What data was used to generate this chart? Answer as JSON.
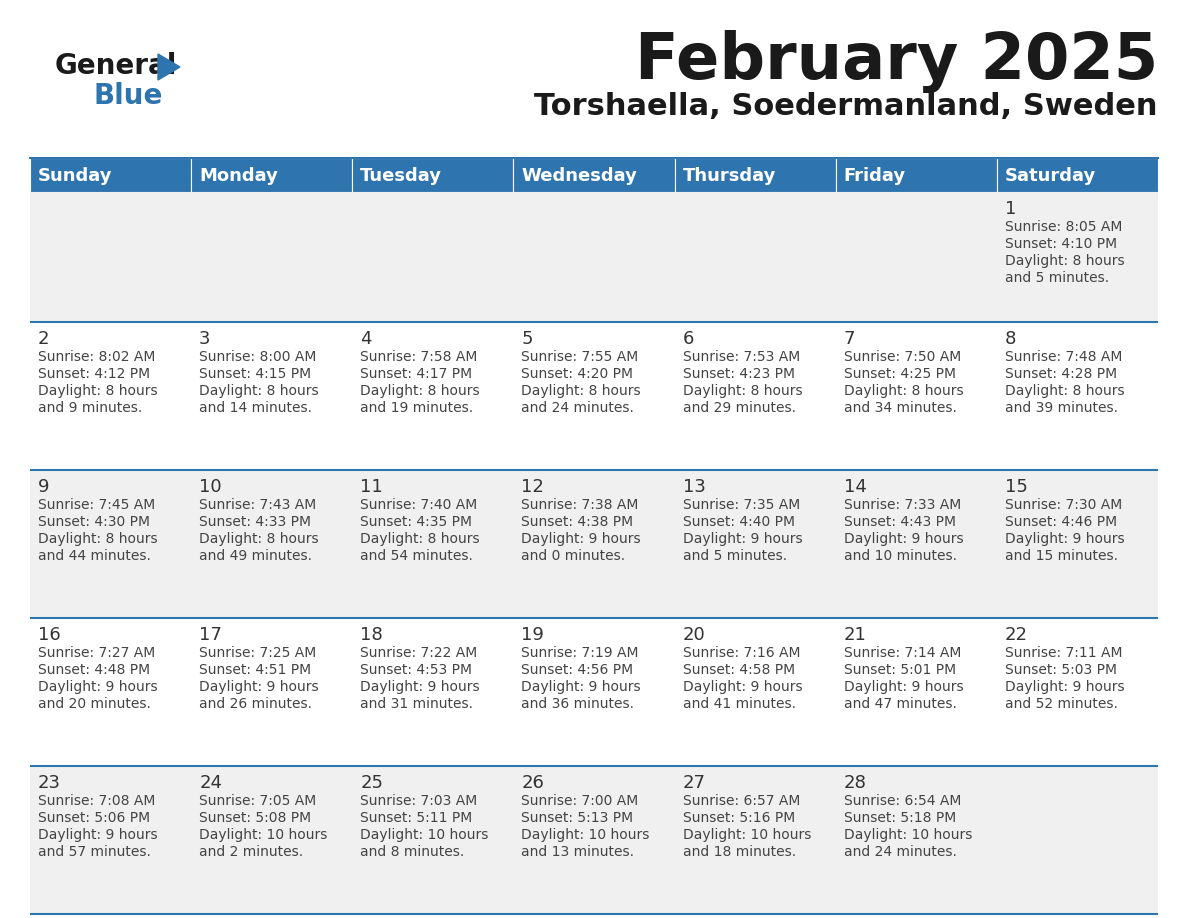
{
  "title": "February 2025",
  "subtitle": "Torshaella, Soedermanland, Sweden",
  "header_bg": "#2E74AE",
  "header_text_color": "#FFFFFF",
  "row_bg_odd": "#F0F0F0",
  "row_bg_even": "#FFFFFF",
  "separator_color": "#2E74AE",
  "text_color": "#333333",
  "days_of_week": [
    "Sunday",
    "Monday",
    "Tuesday",
    "Wednesday",
    "Thursday",
    "Friday",
    "Saturday"
  ],
  "calendar_data": [
    [
      {
        "day": "",
        "info": ""
      },
      {
        "day": "",
        "info": ""
      },
      {
        "day": "",
        "info": ""
      },
      {
        "day": "",
        "info": ""
      },
      {
        "day": "",
        "info": ""
      },
      {
        "day": "",
        "info": ""
      },
      {
        "day": "1",
        "info": "Sunrise: 8:05 AM\nSunset: 4:10 PM\nDaylight: 8 hours\nand 5 minutes."
      }
    ],
    [
      {
        "day": "2",
        "info": "Sunrise: 8:02 AM\nSunset: 4:12 PM\nDaylight: 8 hours\nand 9 minutes."
      },
      {
        "day": "3",
        "info": "Sunrise: 8:00 AM\nSunset: 4:15 PM\nDaylight: 8 hours\nand 14 minutes."
      },
      {
        "day": "4",
        "info": "Sunrise: 7:58 AM\nSunset: 4:17 PM\nDaylight: 8 hours\nand 19 minutes."
      },
      {
        "day": "5",
        "info": "Sunrise: 7:55 AM\nSunset: 4:20 PM\nDaylight: 8 hours\nand 24 minutes."
      },
      {
        "day": "6",
        "info": "Sunrise: 7:53 AM\nSunset: 4:23 PM\nDaylight: 8 hours\nand 29 minutes."
      },
      {
        "day": "7",
        "info": "Sunrise: 7:50 AM\nSunset: 4:25 PM\nDaylight: 8 hours\nand 34 minutes."
      },
      {
        "day": "8",
        "info": "Sunrise: 7:48 AM\nSunset: 4:28 PM\nDaylight: 8 hours\nand 39 minutes."
      }
    ],
    [
      {
        "day": "9",
        "info": "Sunrise: 7:45 AM\nSunset: 4:30 PM\nDaylight: 8 hours\nand 44 minutes."
      },
      {
        "day": "10",
        "info": "Sunrise: 7:43 AM\nSunset: 4:33 PM\nDaylight: 8 hours\nand 49 minutes."
      },
      {
        "day": "11",
        "info": "Sunrise: 7:40 AM\nSunset: 4:35 PM\nDaylight: 8 hours\nand 54 minutes."
      },
      {
        "day": "12",
        "info": "Sunrise: 7:38 AM\nSunset: 4:38 PM\nDaylight: 9 hours\nand 0 minutes."
      },
      {
        "day": "13",
        "info": "Sunrise: 7:35 AM\nSunset: 4:40 PM\nDaylight: 9 hours\nand 5 minutes."
      },
      {
        "day": "14",
        "info": "Sunrise: 7:33 AM\nSunset: 4:43 PM\nDaylight: 9 hours\nand 10 minutes."
      },
      {
        "day": "15",
        "info": "Sunrise: 7:30 AM\nSunset: 4:46 PM\nDaylight: 9 hours\nand 15 minutes."
      }
    ],
    [
      {
        "day": "16",
        "info": "Sunrise: 7:27 AM\nSunset: 4:48 PM\nDaylight: 9 hours\nand 20 minutes."
      },
      {
        "day": "17",
        "info": "Sunrise: 7:25 AM\nSunset: 4:51 PM\nDaylight: 9 hours\nand 26 minutes."
      },
      {
        "day": "18",
        "info": "Sunrise: 7:22 AM\nSunset: 4:53 PM\nDaylight: 9 hours\nand 31 minutes."
      },
      {
        "day": "19",
        "info": "Sunrise: 7:19 AM\nSunset: 4:56 PM\nDaylight: 9 hours\nand 36 minutes."
      },
      {
        "day": "20",
        "info": "Sunrise: 7:16 AM\nSunset: 4:58 PM\nDaylight: 9 hours\nand 41 minutes."
      },
      {
        "day": "21",
        "info": "Sunrise: 7:14 AM\nSunset: 5:01 PM\nDaylight: 9 hours\nand 47 minutes."
      },
      {
        "day": "22",
        "info": "Sunrise: 7:11 AM\nSunset: 5:03 PM\nDaylight: 9 hours\nand 52 minutes."
      }
    ],
    [
      {
        "day": "23",
        "info": "Sunrise: 7:08 AM\nSunset: 5:06 PM\nDaylight: 9 hours\nand 57 minutes."
      },
      {
        "day": "24",
        "info": "Sunrise: 7:05 AM\nSunset: 5:08 PM\nDaylight: 10 hours\nand 2 minutes."
      },
      {
        "day": "25",
        "info": "Sunrise: 7:03 AM\nSunset: 5:11 PM\nDaylight: 10 hours\nand 8 minutes."
      },
      {
        "day": "26",
        "info": "Sunrise: 7:00 AM\nSunset: 5:13 PM\nDaylight: 10 hours\nand 13 minutes."
      },
      {
        "day": "27",
        "info": "Sunrise: 6:57 AM\nSunset: 5:16 PM\nDaylight: 10 hours\nand 18 minutes."
      },
      {
        "day": "28",
        "info": "Sunrise: 6:54 AM\nSunset: 5:18 PM\nDaylight: 10 hours\nand 24 minutes."
      },
      {
        "day": "",
        "info": ""
      }
    ]
  ]
}
